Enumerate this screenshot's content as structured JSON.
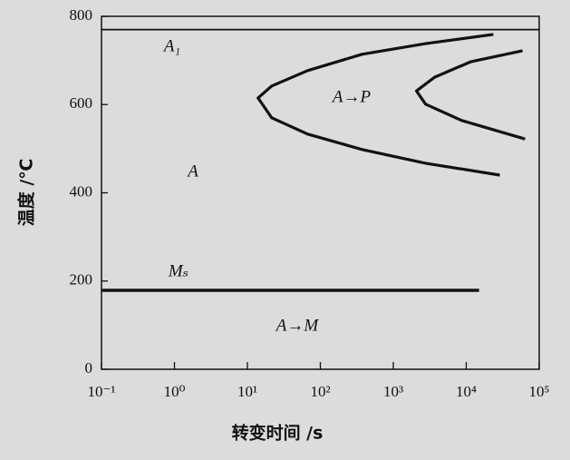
{
  "chart_data": {
    "type": "line",
    "xlabel": "转变时间 /s",
    "ylabel": "温度 /℃",
    "log_x": true,
    "xlim": [
      0.1,
      100000
    ],
    "ylim": [
      0,
      800
    ],
    "xticks": [
      {
        "value": 0.1,
        "label": "10⁻¹"
      },
      {
        "value": 1,
        "label": "10⁰"
      },
      {
        "value": 10,
        "label": "10¹"
      },
      {
        "value": 100,
        "label": "10²"
      },
      {
        "value": 1000,
        "label": "10³"
      },
      {
        "value": 10000,
        "label": "10⁴"
      },
      {
        "value": 100000,
        "label": "10⁵"
      }
    ],
    "yticks": [
      0,
      200,
      400,
      600,
      800
    ],
    "annotations": [
      "A₁",
      "A→P",
      "A",
      "Mₛ",
      "A→M"
    ],
    "series": [
      {
        "color": "#111111",
        "x": [
          0.1,
          100000
        ],
        "values": [
          770,
          770
        ]
      },
      {
        "color": "#111111",
        "x": [
          0.1,
          15000
        ],
        "values": [
          179,
          179
        ]
      },
      {
        "color": "#111111",
        "x": [
          23500,
          2770,
          374,
          67,
          21.5,
          14,
          21.5,
          67,
          374,
          2770,
          28800
        ],
        "values": [
          759,
          738,
          714,
          677,
          642,
          615,
          570,
          533,
          498,
          467,
          440
        ]
      },
      {
        "color": "#111111",
        "x": [
          59000,
          11500,
          3680,
          2080,
          2770,
          8670,
          64000
        ],
        "values": [
          722,
          697,
          662,
          631,
          601,
          564,
          522
        ]
      }
    ]
  }
}
